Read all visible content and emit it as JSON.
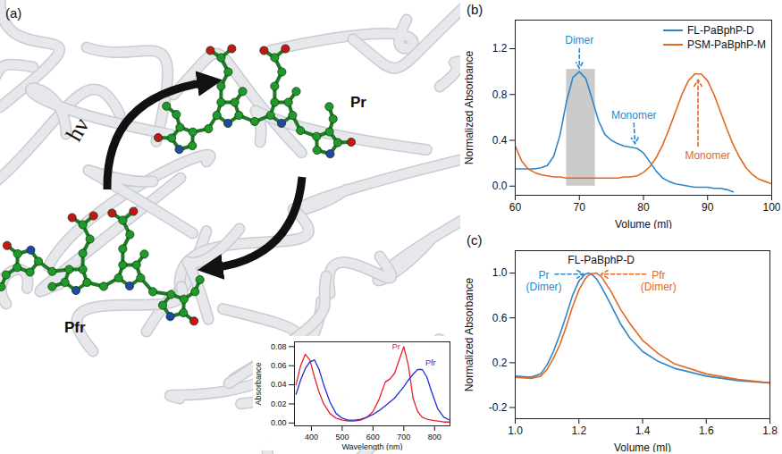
{
  "diagram": {
    "panel_label": "(a)",
    "light_label": "hν",
    "states": [
      "Pr",
      "Pfr"
    ]
  },
  "chart_data": [
    {
      "type": "line",
      "x_label": "Wavelength (nm)",
      "y_label": "Absorbance",
      "x": [
        350,
        365,
        380,
        395,
        410,
        425,
        440,
        460,
        480,
        500,
        520,
        540,
        560,
        580,
        600,
        620,
        640,
        655,
        670,
        685,
        700,
        715,
        730,
        745,
        760,
        775,
        790,
        810,
        830,
        850
      ],
      "series": [
        {
          "name": "Pr",
          "color": "#e8202a",
          "values": [
            0.04,
            0.06,
            0.072,
            0.066,
            0.048,
            0.032,
            0.02,
            0.01,
            0.005,
            0.003,
            0.002,
            0.002,
            0.003,
            0.006,
            0.012,
            0.025,
            0.043,
            0.046,
            0.052,
            0.066,
            0.08,
            0.06,
            0.026,
            0.012,
            0.006,
            0.004,
            0.003,
            0.002,
            0.001,
            0.001
          ]
        },
        {
          "name": "Pfr",
          "color": "#1f2fd6",
          "values": [
            0.03,
            0.045,
            0.057,
            0.064,
            0.066,
            0.056,
            0.04,
            0.022,
            0.01,
            0.005,
            0.003,
            0.003,
            0.004,
            0.006,
            0.009,
            0.013,
            0.018,
            0.022,
            0.026,
            0.032,
            0.038,
            0.045,
            0.051,
            0.056,
            0.056,
            0.048,
            0.033,
            0.015,
            0.006,
            0.003
          ]
        }
      ],
      "annotations": [
        {
          "text": "Pr",
          "x": 675,
          "y": 0.08,
          "color": "#e8202a"
        },
        {
          "text": "Pfr",
          "x": 787,
          "y": 0.063,
          "color": "#1f2fd6"
        }
      ],
      "xlim": [
        345,
        850
      ],
      "xticks": [
        400,
        500,
        600,
        700,
        800
      ],
      "ylim": [
        -0.003,
        0.085
      ],
      "yticks": [
        {
          "value": 0,
          "label": "0.00"
        },
        0.02,
        0.04,
        0.06,
        0.08
      ]
    },
    {
      "type": "line",
      "panel_label": "(b)",
      "x_label": "Volume (ml)",
      "y_label": "Normalized Absorbance",
      "x": [
        60,
        61,
        62,
        63,
        64,
        65,
        66,
        67,
        68,
        69,
        70,
        71,
        72,
        73,
        74,
        75,
        76,
        77,
        78,
        79,
        80,
        81,
        82,
        83,
        84,
        85,
        86,
        87,
        88,
        89,
        90,
        91,
        92,
        93,
        94,
        95,
        96,
        97,
        98,
        99,
        100
      ],
      "series": [
        {
          "name": "FL-PaBphP-D",
          "color": "#2e86c8",
          "values": [
            0.15,
            0.15,
            0.15,
            0.15,
            0.16,
            0.18,
            0.26,
            0.45,
            0.74,
            0.95,
            1.0,
            0.94,
            0.76,
            0.57,
            0.45,
            0.4,
            0.37,
            0.35,
            0.34,
            0.33,
            0.29,
            0.21,
            0.13,
            0.07,
            0.04,
            0.02,
            0.01,
            0.0,
            -0.01,
            -0.01,
            -0.01,
            -0.02,
            -0.02,
            -0.03,
            -0.05,
            null,
            null,
            null,
            null,
            null,
            null
          ]
        },
        {
          "name": "PSM-PaBphP-M",
          "color": "#e2691f",
          "values": [
            0.35,
            0.22,
            0.15,
            0.12,
            0.1,
            0.09,
            0.08,
            0.08,
            0.07,
            0.07,
            0.07,
            0.07,
            0.07,
            0.07,
            0.07,
            0.07,
            0.07,
            0.08,
            0.08,
            0.09,
            0.12,
            0.17,
            0.25,
            0.36,
            0.5,
            0.65,
            0.8,
            0.92,
            0.98,
            0.98,
            0.92,
            0.8,
            0.65,
            0.5,
            0.36,
            0.25,
            0.16,
            0.1,
            0.06,
            0.04,
            0.02
          ]
        }
      ],
      "shaded_region": {
        "x": [
          68,
          72.5
        ],
        "y": [
          0,
          1.02
        ]
      },
      "annotations": [
        {
          "text": "Dimer",
          "x": 70,
          "y": 1.28,
          "color": "#2e86c8",
          "arrow_from": [
            70,
            1.2
          ],
          "arrow_to": [
            70,
            1.03
          ]
        },
        {
          "text": "Monomer",
          "x": 78.5,
          "y": 0.62,
          "color": "#2e86c8",
          "arrow_from": [
            78.5,
            0.55
          ],
          "arrow_to": [
            78.7,
            0.37
          ]
        },
        {
          "text": "Monomer",
          "x": 90,
          "y": 0.27,
          "color": "#e2691f",
          "arrow_from": [
            88.5,
            0.35
          ],
          "arrow_to": [
            88.5,
            0.93
          ]
        }
      ],
      "legend": "top-right",
      "xlim": [
        60,
        100
      ],
      "xticks": [
        60,
        70,
        80,
        90,
        100
      ],
      "ylim": [
        -0.08,
        1.45
      ],
      "yticks": [
        {
          "value": 0,
          "label": "0.0"
        },
        0.4,
        0.8,
        1.2
      ]
    },
    {
      "type": "line",
      "panel_label": "(c)",
      "x_label": "Volume (ml)",
      "y_label": "Normalized Absorbance",
      "x": [
        1.0,
        1.05,
        1.08,
        1.1,
        1.12,
        1.14,
        1.16,
        1.18,
        1.2,
        1.22,
        1.23,
        1.24,
        1.255,
        1.27,
        1.3,
        1.33,
        1.36,
        1.4,
        1.45,
        1.5,
        1.6,
        1.7,
        1.8
      ],
      "series": [
        {
          "name": "Pr (Dimer)",
          "color": "#2e86c8",
          "values": [
            0.08,
            0.07,
            0.1,
            0.18,
            0.3,
            0.45,
            0.62,
            0.8,
            0.93,
            0.99,
            1.0,
            0.99,
            0.95,
            0.88,
            0.72,
            0.55,
            0.42,
            0.3,
            0.21,
            0.15,
            0.08,
            0.04,
            0.02
          ]
        },
        {
          "name": "Pfr (Dimer)",
          "color": "#e2691f",
          "values": [
            0.07,
            0.06,
            0.08,
            0.14,
            0.24,
            0.36,
            0.52,
            0.7,
            0.85,
            0.95,
            0.98,
            0.995,
            1.0,
            0.97,
            0.84,
            0.68,
            0.55,
            0.4,
            0.28,
            0.19,
            0.1,
            0.05,
            0.02
          ]
        }
      ],
      "annotations": [
        {
          "text": "FL-PaBphP-D",
          "x": 1.27,
          "y": 1.12,
          "color": "#111111"
        },
        {
          "text": "Pr\n(Dimer)",
          "x": 1.09,
          "y": 0.93,
          "color": "#2e86c8",
          "arrow_from": [
            1.125,
            0.99
          ],
          "arrow_to": [
            1.215,
            0.99
          ]
        },
        {
          "text": "Pfr\n(Dimer)",
          "x": 1.45,
          "y": 0.93,
          "color": "#e2691f",
          "arrow_from": [
            1.41,
            0.99
          ],
          "arrow_to": [
            1.27,
            0.99
          ]
        }
      ],
      "xlim": [
        1.0,
        1.8
      ],
      "xticks": [
        {
          "value": 1.0,
          "label": "1.0"
        },
        1.2,
        1.4,
        1.6,
        1.8
      ],
      "ylim": [
        -0.3,
        1.2
      ],
      "yticks": [
        -0.2,
        0.2,
        0.6,
        {
          "value": 1.0,
          "label": "1.0"
        }
      ]
    }
  ]
}
